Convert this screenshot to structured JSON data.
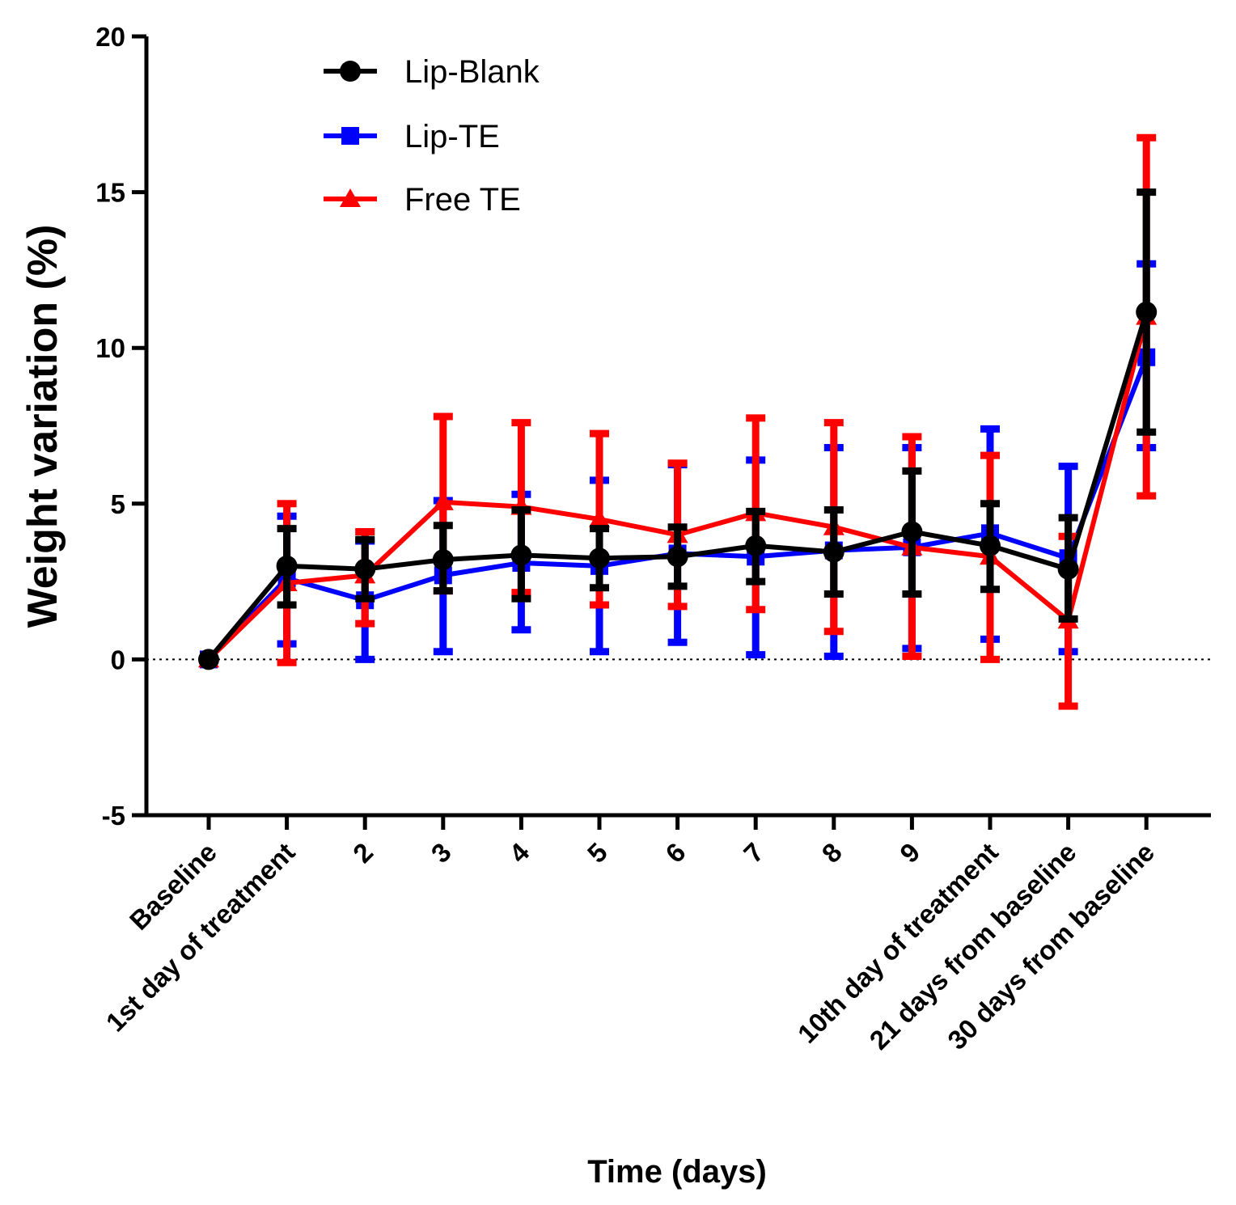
{
  "chart_data": {
    "type": "line",
    "title": "",
    "xlabel": "Time (days)",
    "ylabel": "Weight variation (%)",
    "ylim": [
      -5,
      20
    ],
    "yticks": [
      -5,
      0,
      5,
      10,
      15,
      20
    ],
    "reference_line": 0,
    "legend_position": "top-left",
    "categories": [
      "Baseline",
      "1st day of treatment",
      "2",
      "3",
      "4",
      "5",
      "6",
      "7",
      "8",
      "9",
      "10th day of treatment",
      "21 days from baseline",
      "30 days from baseline"
    ],
    "series": [
      {
        "name": "Lip-TE",
        "color": "#0000ff",
        "marker": "square",
        "values": [
          0,
          2.6,
          1.9,
          2.7,
          3.1,
          3.0,
          3.4,
          3.3,
          3.5,
          3.6,
          4.05,
          3.25,
          9.7
        ],
        "err_high": [
          0,
          4.6,
          3.8,
          5.1,
          5.3,
          5.75,
          6.25,
          6.4,
          6.8,
          6.8,
          7.4,
          6.2,
          12.7
        ],
        "err_low": [
          0,
          0.5,
          0.0,
          0.25,
          0.95,
          0.25,
          0.55,
          0.15,
          0.1,
          0.35,
          0.65,
          0.25,
          6.8
        ]
      },
      {
        "name": "Free TE",
        "color": "#ff0000",
        "marker": "triangle",
        "values": [
          0,
          2.45,
          2.7,
          5.05,
          4.9,
          4.5,
          4.0,
          4.7,
          4.25,
          3.6,
          3.3,
          1.25,
          11.0
        ],
        "err_high": [
          0,
          5.0,
          4.1,
          7.8,
          7.6,
          7.25,
          6.3,
          7.75,
          7.6,
          7.15,
          6.55,
          3.95,
          16.75
        ],
        "err_low": [
          0,
          -0.1,
          1.15,
          2.2,
          2.15,
          1.75,
          1.7,
          1.6,
          0.9,
          0.1,
          0.0,
          -1.5,
          5.25
        ]
      },
      {
        "name": "Lip-Blank",
        "color": "#000000",
        "marker": "circle",
        "values": [
          0,
          3.0,
          2.9,
          3.2,
          3.35,
          3.25,
          3.3,
          3.65,
          3.45,
          4.1,
          3.65,
          2.9,
          11.15
        ],
        "err_high": [
          0,
          4.2,
          3.85,
          4.3,
          4.8,
          4.2,
          4.25,
          4.75,
          4.8,
          6.05,
          5.0,
          4.55,
          15.0
        ],
        "err_low": [
          0,
          1.75,
          1.95,
          2.2,
          1.95,
          2.3,
          2.35,
          2.5,
          2.1,
          2.1,
          2.25,
          1.3,
          7.3
        ]
      }
    ],
    "legend": [
      "Lip-Blank",
      "Lip-TE",
      "Free TE"
    ]
  }
}
